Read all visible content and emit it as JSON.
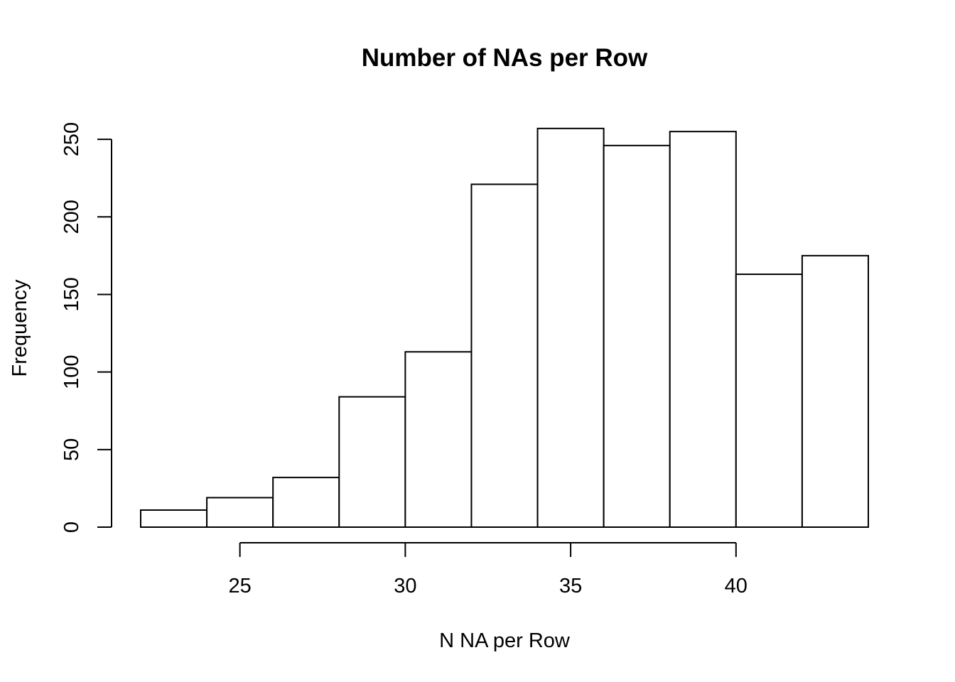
{
  "chart_data": {
    "type": "bar",
    "title": "Number of NAs per Row",
    "xlabel": "N NA per Row",
    "ylabel": "Frequency",
    "bins": [
      {
        "from": 22,
        "to": 24,
        "count": 11
      },
      {
        "from": 24,
        "to": 26,
        "count": 19
      },
      {
        "from": 26,
        "to": 28,
        "count": 32
      },
      {
        "from": 28,
        "to": 30,
        "count": 84
      },
      {
        "from": 30,
        "to": 32,
        "count": 113
      },
      {
        "from": 32,
        "to": 34,
        "count": 221
      },
      {
        "from": 34,
        "to": 36,
        "count": 257
      },
      {
        "from": 36,
        "to": 38,
        "count": 246
      },
      {
        "from": 38,
        "to": 40,
        "count": 255
      },
      {
        "from": 40,
        "to": 42,
        "count": 163
      },
      {
        "from": 42,
        "to": 44,
        "count": 175
      }
    ],
    "x_ticks": [
      25,
      30,
      35,
      40
    ],
    "y_ticks": [
      0,
      50,
      100,
      150,
      200,
      250
    ],
    "xlim": [
      22,
      44
    ],
    "ylim": [
      0,
      257
    ],
    "grid": false,
    "legend": "none",
    "colors": {
      "bar_fill": "#ffffff",
      "bar_stroke": "#000000"
    }
  }
}
